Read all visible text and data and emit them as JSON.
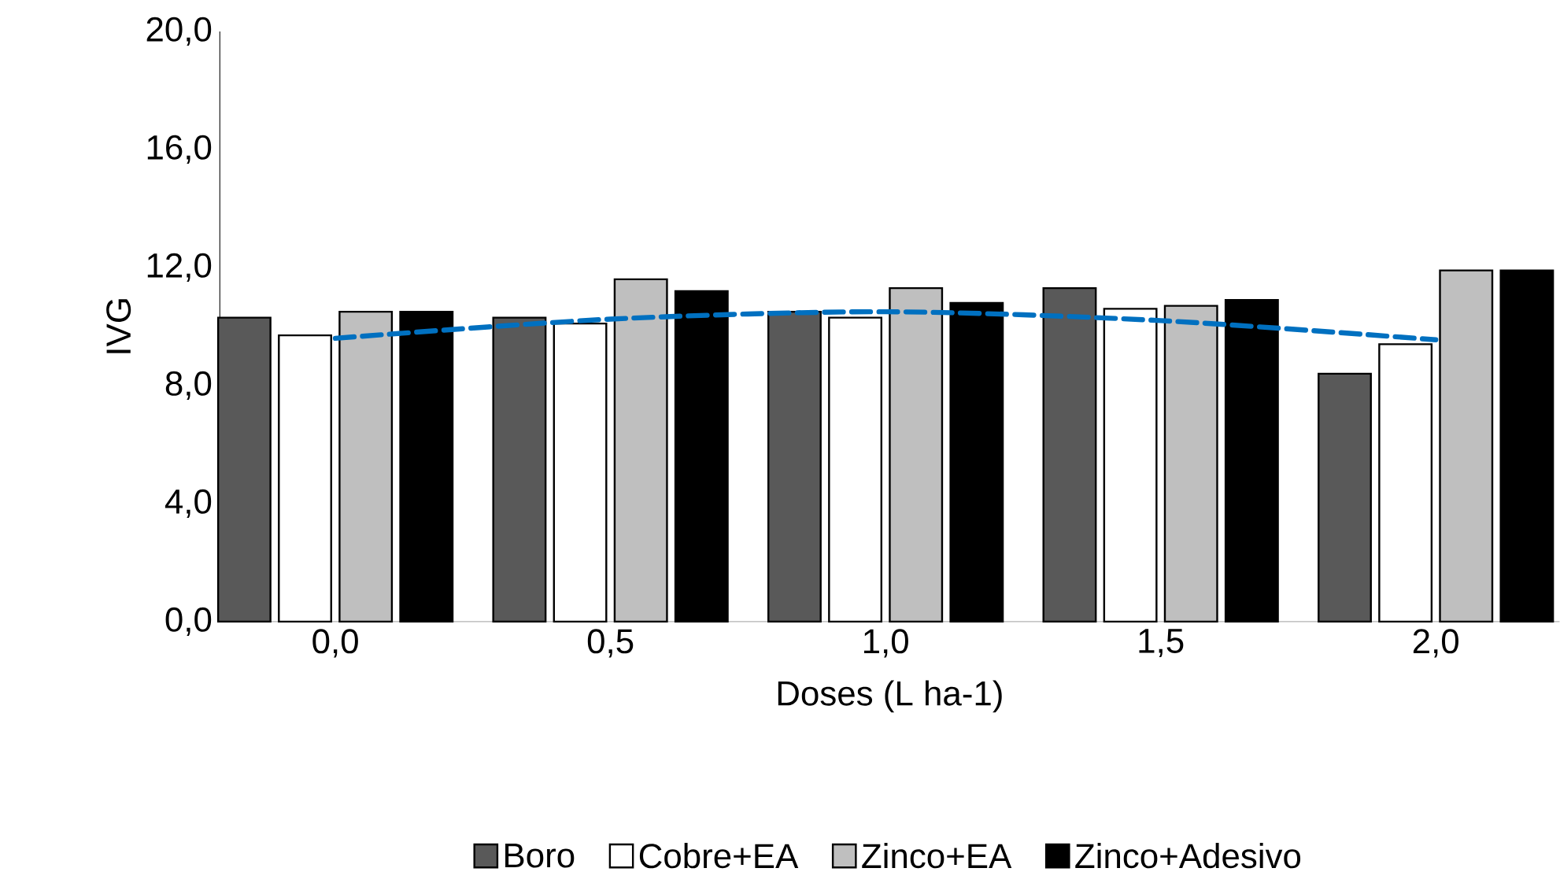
{
  "chart_data": {
    "type": "bar",
    "xlabel": "Doses (L ha-1)",
    "ylabel": "IVG",
    "categories": [
      "0,0",
      "0,5",
      "1,0",
      "1,5",
      "2,0"
    ],
    "ylim": [
      0,
      20
    ],
    "yticks": [
      {
        "value": 0,
        "label": "0,0"
      },
      {
        "value": 4,
        "label": "4,0"
      },
      {
        "value": 8,
        "label": "8,0"
      },
      {
        "value": 12,
        "label": "12,0"
      },
      {
        "value": 16,
        "label": "16,0"
      },
      {
        "value": 20,
        "label": "20,0"
      }
    ],
    "legend": "bottom",
    "series": [
      {
        "name": "Boro",
        "color": "#595959",
        "values": [
          10.3,
          10.3,
          10.5,
          11.3,
          8.4
        ]
      },
      {
        "name": "Cobre+EA",
        "color": "#ffffff",
        "values": [
          9.7,
          10.1,
          10.3,
          10.6,
          9.4
        ]
      },
      {
        "name": "Zinco+EA",
        "color": "#bfbfbf",
        "values": [
          10.5,
          11.6,
          11.3,
          10.7,
          11.9
        ]
      },
      {
        "name": "Zinco+Adesivo",
        "color": "#000000",
        "values": [
          10.5,
          11.2,
          10.8,
          10.9,
          11.9
        ]
      },
      {
        "type": "line",
        "color": "#0070c0",
        "line_style": "dashed",
        "values": [
          9.6,
          10.25,
          10.5,
          10.2,
          9.55
        ]
      }
    ]
  }
}
